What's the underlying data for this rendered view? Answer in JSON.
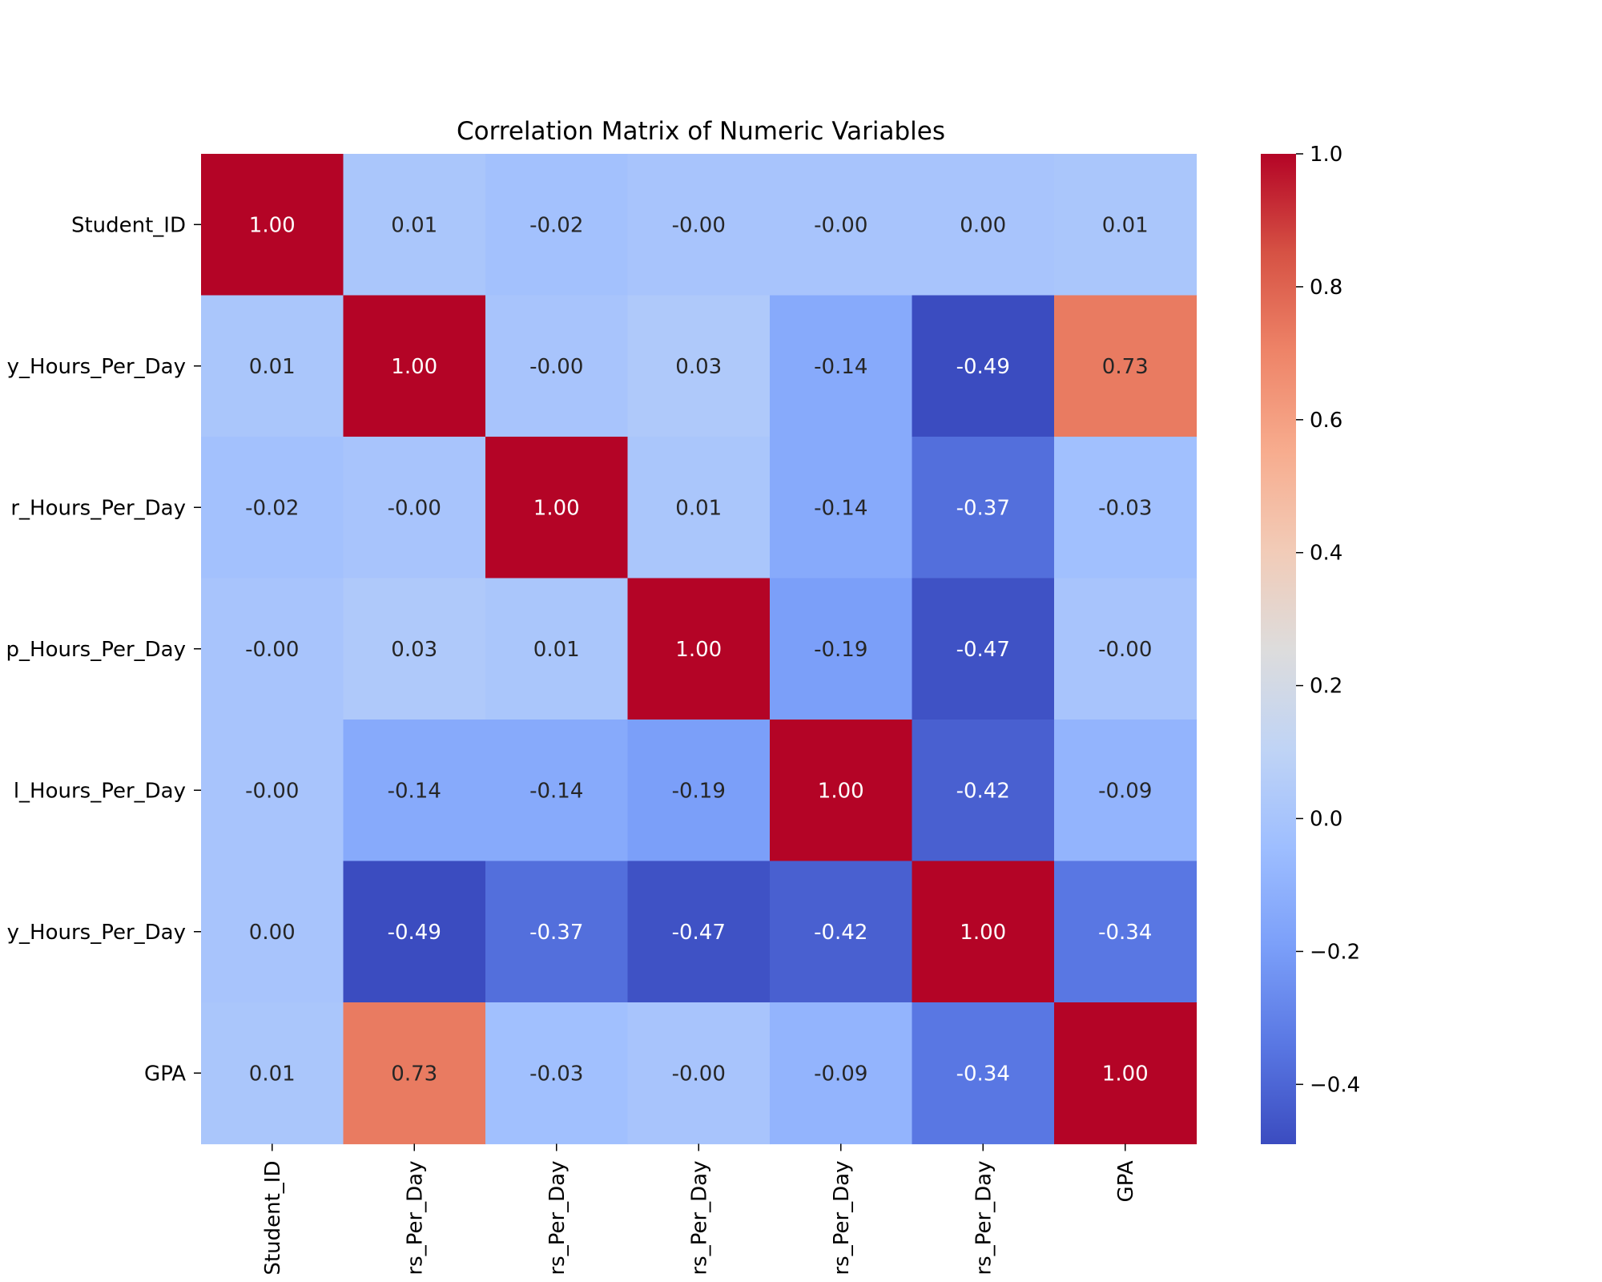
{
  "chart_data": {
    "type": "heatmap",
    "title": "Correlation Matrix of Numeric Variables",
    "xlabel": "",
    "ylabel": "",
    "row_labels": [
      "Student_ID",
      "y_Hours_Per_Day",
      "r_Hours_Per_Day",
      "p_Hours_Per_Day",
      "l_Hours_Per_Day",
      "y_Hours_Per_Day",
      "GPA"
    ],
    "col_labels": [
      "Student_ID",
      "rs_Per_Day",
      "rs_Per_Day",
      "rs_Per_Day",
      "rs_Per_Day",
      "rs_Per_Day",
      "GPA"
    ],
    "values": [
      [
        1.0,
        0.01,
        -0.02,
        -0.0,
        -0.0,
        0.0,
        0.01
      ],
      [
        0.01,
        1.0,
        -0.0,
        0.03,
        -0.14,
        -0.49,
        0.73
      ],
      [
        -0.02,
        -0.0,
        1.0,
        0.01,
        -0.14,
        -0.37,
        -0.03
      ],
      [
        -0.0,
        0.03,
        0.01,
        1.0,
        -0.19,
        -0.47,
        -0.0
      ],
      [
        -0.0,
        -0.14,
        -0.14,
        -0.19,
        1.0,
        -0.42,
        -0.09
      ],
      [
        0.0,
        -0.49,
        -0.37,
        -0.47,
        -0.42,
        1.0,
        -0.34
      ],
      [
        0.01,
        0.73,
        -0.03,
        -0.0,
        -0.09,
        -0.34,
        1.0
      ]
    ],
    "value_format": "2 decimals",
    "colormap": "coolwarm",
    "vmin": -0.49,
    "vmax": 1.0,
    "colorbar_ticks": [
      "−0.4",
      "−0.2",
      "0.0",
      "0.2",
      "0.4",
      "0.6",
      "0.8",
      "1.0"
    ],
    "colorbar_tick_values": [
      -0.4,
      -0.2,
      0.0,
      0.2,
      0.4,
      0.6,
      0.8,
      1.0
    ],
    "colors": {
      "low": "#3b4cc0",
      "mid": "#dddcdc",
      "high": "#b40426"
    }
  }
}
